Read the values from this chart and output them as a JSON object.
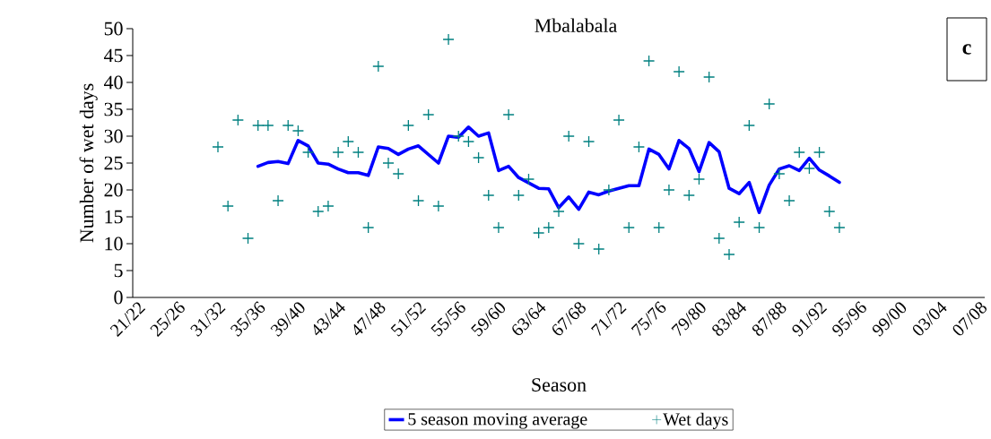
{
  "chart_data": {
    "type": "line",
    "title": "Mbalabala",
    "xlabel": "Season",
    "ylabel": "Number of wet days",
    "annotations": [
      "c"
    ],
    "categories": [
      "21/22",
      null,
      null,
      null,
      "25/26",
      null,
      null,
      null,
      "31/32",
      null,
      null,
      null,
      "35/36",
      null,
      null,
      null,
      "39/40",
      null,
      null,
      null,
      "43/44",
      null,
      null,
      null,
      "47/48",
      null,
      null,
      null,
      "51/52",
      null,
      null,
      null,
      "55/56",
      null,
      null,
      null,
      "59/60",
      null,
      null,
      null,
      "63/64",
      null,
      null,
      null,
      "67/68",
      null,
      null,
      null,
      "71/72",
      null,
      null,
      null,
      "75/76",
      null,
      null,
      null,
      "79/80",
      null,
      null,
      null,
      "83/84",
      null,
      null,
      null,
      "87/88",
      null,
      null,
      null,
      "91/92",
      null,
      null,
      null,
      "95/96",
      null,
      null,
      null,
      "99/00",
      null,
      null,
      null,
      "03/04",
      null,
      null,
      null,
      "07/08"
    ],
    "ylim": [
      0,
      50
    ],
    "yticks": [
      0,
      5,
      10,
      15,
      20,
      25,
      30,
      35,
      40,
      45,
      50
    ],
    "legend": "bottom",
    "series": [
      {
        "name": "5 season moving average",
        "color": "#0000ff",
        "marker": "none",
        "line_style": "solid",
        "values": [
          null,
          null,
          null,
          null,
          null,
          null,
          null,
          null,
          null,
          null,
          null,
          null,
          24.4,
          25.1,
          25.3,
          24.9,
          29.2,
          28.2,
          25.0,
          24.8,
          23.9,
          23.2,
          23.2,
          22.7,
          28.0,
          27.7,
          26.6,
          27.6,
          28.2,
          26.6,
          25.0,
          30.0,
          29.8,
          31.7,
          30.0,
          30.6,
          23.6,
          24.4,
          22.3,
          21.3,
          20.3,
          20.2,
          16.7,
          18.7,
          16.4,
          19.6,
          19.1,
          19.8,
          20.3,
          20.8,
          20.8,
          27.6,
          26.6,
          23.9,
          29.2,
          27.7,
          23.4,
          28.8,
          27.1,
          20.3,
          19.3,
          21.4,
          15.8,
          20.9,
          23.9,
          24.5,
          23.6,
          25.9,
          23.7,
          22.6,
          21.4,
          null,
          null,
          null,
          null,
          null,
          null,
          null,
          null,
          null,
          null,
          null,
          null,
          null,
          null
        ]
      },
      {
        "name": "Wet days",
        "type": "scatter",
        "color": "#008080",
        "marker": "cross",
        "values": [
          null,
          null,
          null,
          null,
          null,
          null,
          null,
          null,
          28,
          17,
          33,
          11,
          32,
          32,
          18,
          32,
          31,
          27,
          16,
          17,
          27,
          29,
          27,
          13,
          43,
          25,
          23,
          32,
          18,
          34,
          17,
          48,
          30,
          29,
          26,
          19,
          13,
          34,
          19,
          22,
          12,
          13,
          16,
          30,
          10,
          29,
          9,
          20,
          33,
          13,
          28,
          44,
          13,
          20,
          42,
          19,
          22,
          41,
          11,
          8,
          14,
          32,
          13,
          36,
          23,
          18,
          27,
          24,
          27,
          16,
          13,
          null,
          null,
          null,
          null,
          null,
          null,
          null,
          null,
          null,
          null,
          null,
          null,
          null,
          null
        ]
      }
    ]
  }
}
